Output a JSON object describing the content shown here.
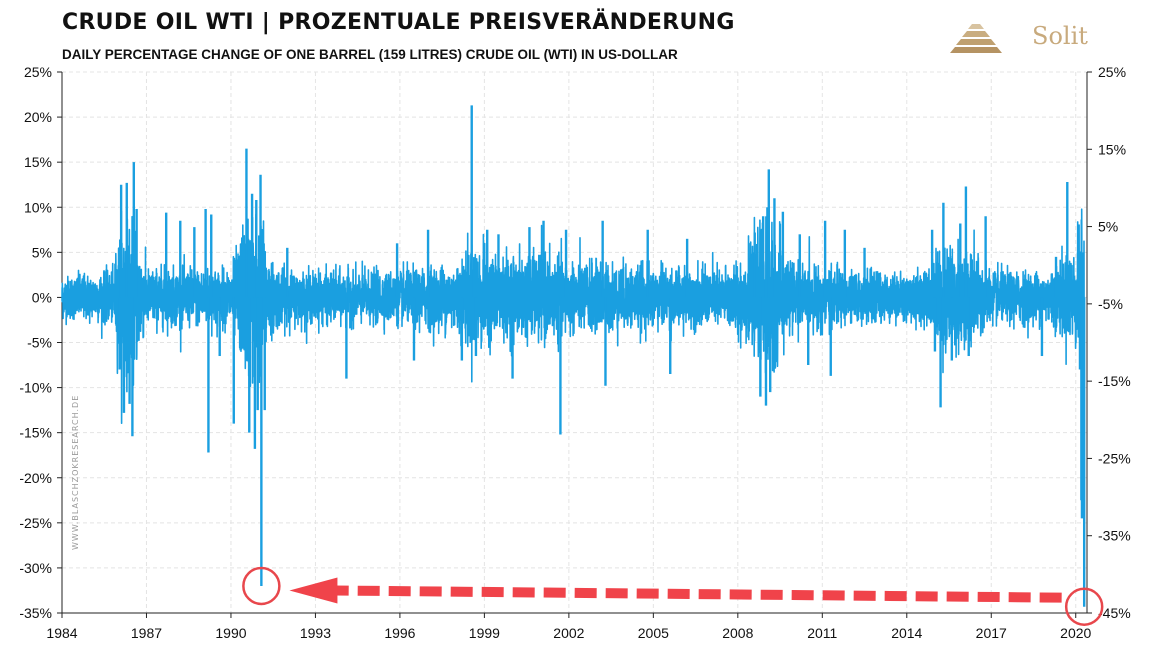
{
  "title": "CRUDE OIL WTI | PROZENTUALE  PREISVERÄNDERUNG",
  "subtitle": "DAILY PERCENTAGE CHANGE OF ONE BARREL (159 LITRES) CRUDE OIL (WTI) IN US-DOLLAR",
  "logo": {
    "text": "Solit"
  },
  "watermark": "WWW.BLASCHZOKRESEARCH.DE",
  "colors": {
    "series": "#1a9fe0",
    "highlight": "#e8474c",
    "arrow": "#f0434a",
    "grid": "#e4e4e4",
    "logo": "#c8aa7d"
  },
  "chart_data": {
    "type": "line",
    "title": "CRUDE OIL WTI | PROZENTUALE  PREISVERÄNDERUNG",
    "subtitle": "DAILY PERCENTAGE CHANGE OF ONE BARREL (159 LITRES) CRUDE OIL (WTI) IN US-DOLLAR",
    "x_range": [
      1984,
      2020.4
    ],
    "x_ticks": [
      "1984",
      "1987",
      "1990",
      "1993",
      "1996",
      "1999",
      "2002",
      "2005",
      "2008",
      "2011",
      "2014",
      "2017",
      "2020"
    ],
    "x_tick_values": [
      1984,
      1987,
      1990,
      1993,
      1996,
      1999,
      2002,
      2005,
      2008,
      2011,
      2014,
      2017,
      2020
    ],
    "ylim": [
      -35,
      25
    ],
    "y_left_ticks": [
      "25%",
      "20%",
      "15%",
      "10%",
      "5%",
      "0%",
      "-5%",
      "-10%",
      "-15%",
      "-20%",
      "-25%",
      "-30%",
      "-35%"
    ],
    "y_left_values": [
      25,
      20,
      15,
      10,
      5,
      0,
      -5,
      -10,
      -15,
      -20,
      -25,
      -30,
      -35
    ],
    "y_right_ticks": [
      "25%",
      "15%",
      "5%",
      "-5%",
      "-15%",
      "-25%",
      "-35%",
      "-45%"
    ],
    "y_right_values": [
      25,
      15,
      5,
      -5,
      -15,
      -25,
      -35,
      -45
    ],
    "y_right_range": [
      -45,
      25
    ],
    "grid": true,
    "volatility_profile": [
      [
        1984.0,
        1.5
      ],
      [
        1985.8,
        1.8
      ],
      [
        1986.1,
        5.5
      ],
      [
        1986.6,
        5.0
      ],
      [
        1987.0,
        2.0
      ],
      [
        1988.0,
        2.0
      ],
      [
        1989.0,
        2.0
      ],
      [
        1990.0,
        2.0
      ],
      [
        1990.6,
        6.0
      ],
      [
        1991.1,
        5.5
      ],
      [
        1991.4,
        2.5
      ],
      [
        1992.0,
        1.8
      ],
      [
        1994.0,
        1.8
      ],
      [
        1996.0,
        1.8
      ],
      [
        1998.0,
        2.4
      ],
      [
        1998.6,
        3.8
      ],
      [
        1999.5,
        2.8
      ],
      [
        2001.0,
        3.0
      ],
      [
        2002.0,
        2.5
      ],
      [
        2004.0,
        2.3
      ],
      [
        2006.0,
        2.0
      ],
      [
        2007.5,
        2.0
      ],
      [
        2008.5,
        3.2
      ],
      [
        2008.9,
        5.5
      ],
      [
        2009.5,
        4.0
      ],
      [
        2010.0,
        2.2
      ],
      [
        2012.0,
        1.8
      ],
      [
        2014.0,
        1.6
      ],
      [
        2014.8,
        2.0
      ],
      [
        2015.2,
        3.8
      ],
      [
        2016.3,
        3.5
      ],
      [
        2017.0,
        1.8
      ],
      [
        2019.0,
        1.8
      ],
      [
        2020.0,
        3.5
      ],
      [
        2020.3,
        6.0
      ]
    ],
    "spikes": [
      {
        "x": 1985.5,
        "y": 2.9
      },
      {
        "x": 1986.05,
        "y": -8.0
      },
      {
        "x": 1986.1,
        "y": 12.5
      },
      {
        "x": 1986.2,
        "y": -12.8
      },
      {
        "x": 1986.3,
        "y": 12.7
      },
      {
        "x": 1986.4,
        "y": -11.8
      },
      {
        "x": 1986.5,
        "y": -15.4
      },
      {
        "x": 1986.55,
        "y": 15.0
      },
      {
        "x": 1986.65,
        "y": 9.8
      },
      {
        "x": 1987.7,
        "y": 9.4
      },
      {
        "x": 1988.2,
        "y": 8.5
      },
      {
        "x": 1988.7,
        "y": 7.8
      },
      {
        "x": 1989.1,
        "y": 9.8
      },
      {
        "x": 1989.2,
        "y": -17.2
      },
      {
        "x": 1989.3,
        "y": 9.2
      },
      {
        "x": 1989.6,
        "y": -6.5
      },
      {
        "x": 1990.1,
        "y": -14.0
      },
      {
        "x": 1990.55,
        "y": 16.5
      },
      {
        "x": 1990.65,
        "y": -15.0
      },
      {
        "x": 1990.75,
        "y": 11.5
      },
      {
        "x": 1990.85,
        "y": -16.8
      },
      {
        "x": 1990.9,
        "y": 10.8
      },
      {
        "x": 1990.95,
        "y": -12.5
      },
      {
        "x": 1991.05,
        "y": 13.6
      },
      {
        "x": 1991.08,
        "y": -32.0
      },
      {
        "x": 1991.2,
        "y": -12.5
      },
      {
        "x": 1992.0,
        "y": 5.5
      },
      {
        "x": 1994.1,
        "y": -9.0
      },
      {
        "x": 1995.9,
        "y": 6.0
      },
      {
        "x": 1996.5,
        "y": -7.0
      },
      {
        "x": 1997.0,
        "y": 7.5
      },
      {
        "x": 1998.2,
        "y": -7.0
      },
      {
        "x": 1998.55,
        "y": 21.3
      },
      {
        "x": 1998.7,
        "y": -6.5
      },
      {
        "x": 1999.1,
        "y": 7.5
      },
      {
        "x": 1999.5,
        "y": 7.0
      },
      {
        "x": 2000.0,
        "y": -9.0
      },
      {
        "x": 2000.6,
        "y": 7.8
      },
      {
        "x": 2001.1,
        "y": 8.5
      },
      {
        "x": 2001.7,
        "y": -15.2
      },
      {
        "x": 2001.9,
        "y": 7.5
      },
      {
        "x": 2003.2,
        "y": 8.5
      },
      {
        "x": 2003.3,
        "y": -9.8
      },
      {
        "x": 2004.8,
        "y": 7.5
      },
      {
        "x": 2005.6,
        "y": -8.5
      },
      {
        "x": 2006.2,
        "y": 6.5
      },
      {
        "x": 2008.6,
        "y": 7.2
      },
      {
        "x": 2008.8,
        "y": -11.0
      },
      {
        "x": 2008.9,
        "y": 9.0
      },
      {
        "x": 2009.0,
        "y": -12.0
      },
      {
        "x": 2009.05,
        "y": 10.0
      },
      {
        "x": 2009.1,
        "y": 14.2
      },
      {
        "x": 2009.15,
        "y": -10.5
      },
      {
        "x": 2009.3,
        "y": 11.0
      },
      {
        "x": 2009.6,
        "y": 9.5
      },
      {
        "x": 2010.2,
        "y": 7.0
      },
      {
        "x": 2010.5,
        "y": -7.5
      },
      {
        "x": 2011.1,
        "y": 8.5
      },
      {
        "x": 2011.3,
        "y": -8.7
      },
      {
        "x": 2011.8,
        "y": 7.5
      },
      {
        "x": 2012.5,
        "y": 5.5
      },
      {
        "x": 2014.9,
        "y": 7.5
      },
      {
        "x": 2015.0,
        "y": -6.0
      },
      {
        "x": 2015.2,
        "y": -12.2
      },
      {
        "x": 2015.3,
        "y": 10.5
      },
      {
        "x": 2015.6,
        "y": -7.0
      },
      {
        "x": 2015.9,
        "y": 8.2
      },
      {
        "x": 2016.1,
        "y": 12.3
      },
      {
        "x": 2016.2,
        "y": -6.5
      },
      {
        "x": 2016.8,
        "y": 9.0
      },
      {
        "x": 2018.8,
        "y": -6.5
      },
      {
        "x": 2019.3,
        "y": 4.5
      },
      {
        "x": 2019.7,
        "y": 12.8
      },
      {
        "x": 2020.15,
        "y": -8.0
      },
      {
        "x": 2020.2,
        "y": -22.5
      },
      {
        "x": 2020.22,
        "y": -24.5
      },
      {
        "x": 2020.26,
        "y": 5.0
      },
      {
        "x": 2020.3,
        "y": -34.3
      }
    ],
    "annotations": [
      {
        "type": "circle",
        "x": 1991.08,
        "y": -32.0
      },
      {
        "type": "circle",
        "x": 2020.3,
        "y": -34.3
      },
      {
        "type": "dashed-arrow",
        "from": [
          2019.5,
          -33.3
        ],
        "to": [
          1993.0,
          -32.5
        ]
      }
    ]
  }
}
